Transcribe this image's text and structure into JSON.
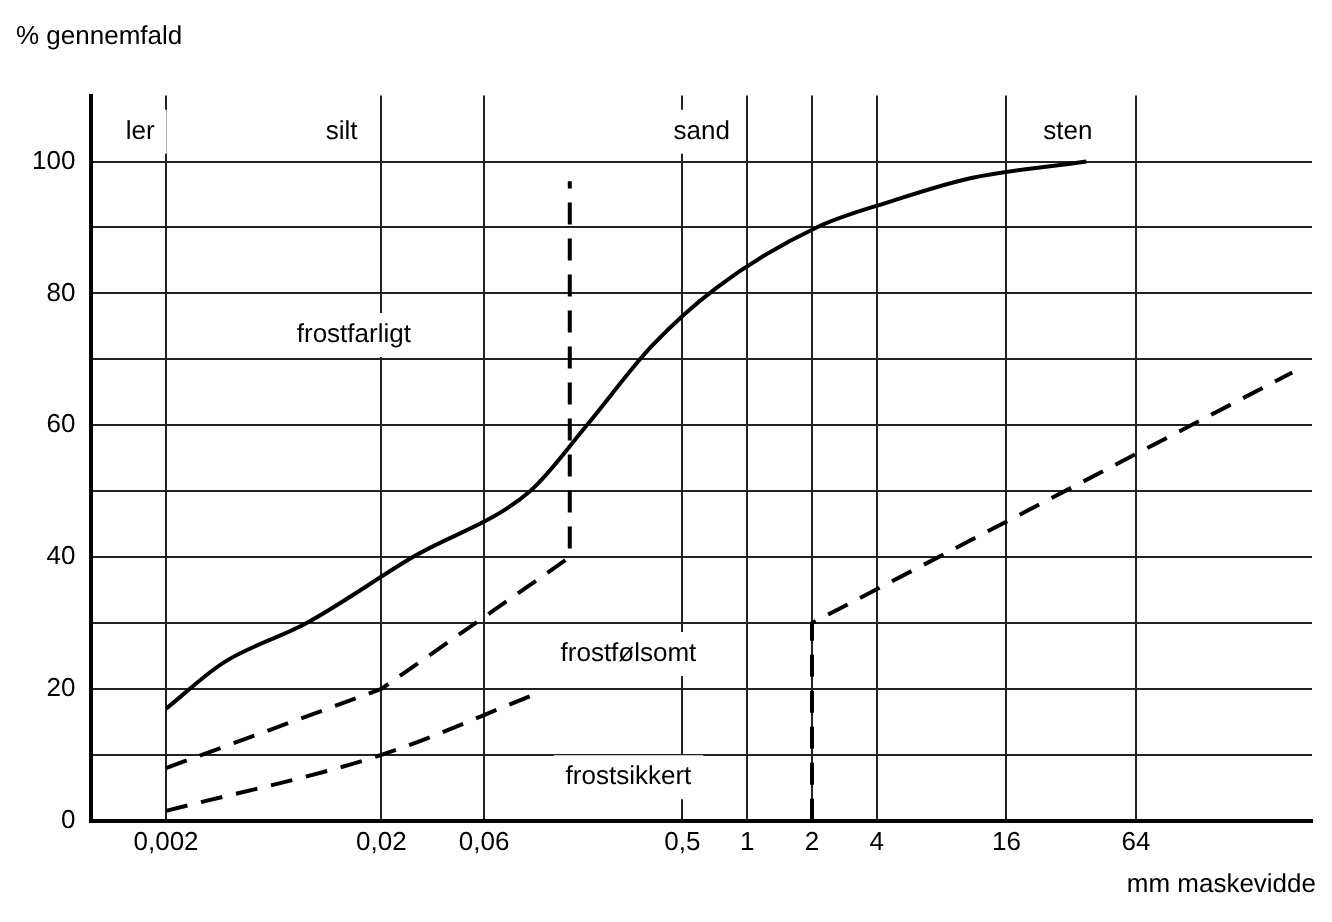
{
  "chart_data": {
    "type": "line",
    "ylabel": "% gennemfald",
    "xlabel": "mm maskevidde",
    "log": "x",
    "xlim": [
      0.0009,
      420
    ],
    "xticks": [
      {
        "value": 0.002,
        "label": "0,002"
      },
      {
        "value": 0.02,
        "label": "0,02"
      },
      {
        "value": 0.06,
        "label": "0,06"
      },
      {
        "value": 0.5,
        "label": "0,5"
      },
      1,
      2,
      4,
      16,
      64
    ],
    "ylim": [
      0,
      110
    ],
    "yticks": [
      0,
      {
        "value": 10,
        "label": null
      },
      20,
      {
        "value": 30,
        "label": null
      },
      40,
      {
        "value": 50,
        "label": null
      },
      60,
      {
        "value": 70,
        "label": null
      },
      80,
      {
        "value": 90,
        "label": null
      },
      100
    ],
    "grid": true,
    "marker": "none",
    "series": [
      {
        "color": "#000000",
        "line_style": "solid",
        "x": [
          0.002,
          0.0037,
          0.009,
          0.028,
          0.098,
          0.18,
          0.36,
          0.73,
          2.1,
          4.7,
          11,
          37.6
        ],
        "values": [
          17,
          24,
          30,
          40,
          50,
          60,
          72,
          81,
          90,
          94,
          97.5,
          100
        ]
      },
      {
        "color": "#000000",
        "line_style": "dashed",
        "x": [
          0.002,
          0.02,
          0.15,
          0.15
        ],
        "values": [
          8,
          20,
          40,
          97
        ]
      },
      {
        "color": "#000000",
        "line_style": "dashed",
        "x": [
          0.002,
          0.02,
          0.1
        ],
        "values": [
          1.5,
          10,
          19
        ]
      },
      {
        "color": "#000000",
        "line_style": "dashed",
        "x": [
          2,
          2,
          340
        ],
        "values": [
          0,
          30,
          68
        ]
      }
    ],
    "annotations": [
      "ler",
      "silt",
      "sand",
      "sten",
      "frostfarligt",
      "frostfølsomt",
      "frostsikkert"
    ]
  }
}
